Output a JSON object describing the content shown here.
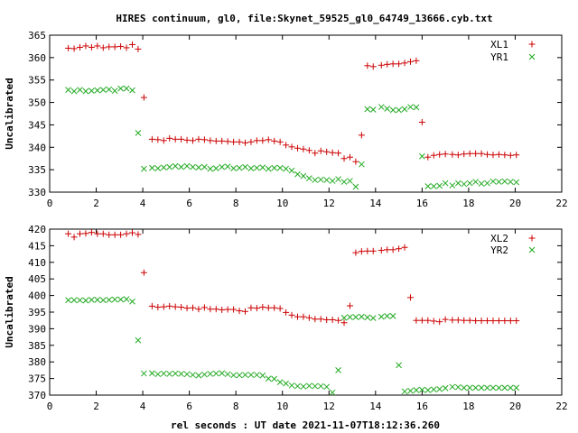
{
  "colors": {
    "red": "#cc0000",
    "green": "#22aa22"
  },
  "chart_data": [
    {
      "type": "scatter",
      "title": "HIRES continuum, gl0, file:Skynet_59525_gl0_64749_13666.cyb.txt",
      "xlabel": "",
      "ylabel": "Uncalibrated",
      "xlim": [
        0,
        22
      ],
      "ylim": [
        330,
        365
      ],
      "xticks": [
        0,
        2,
        4,
        6,
        8,
        10,
        12,
        14,
        16,
        18,
        20,
        22
      ],
      "yticks": [
        330,
        335,
        340,
        345,
        350,
        355,
        360,
        365
      ],
      "legend_position": "top-right",
      "series": [
        {
          "name": "XL1",
          "marker": "plus",
          "color": "#cc0000",
          "x": [
            0.8,
            1.05,
            1.3,
            1.55,
            1.8,
            2.05,
            2.3,
            2.55,
            2.8,
            3.05,
            3.3,
            3.55,
            3.8,
            4.05,
            4.4,
            4.65,
            4.9,
            5.15,
            5.4,
            5.65,
            5.9,
            6.15,
            6.4,
            6.65,
            6.9,
            7.15,
            7.4,
            7.65,
            7.9,
            8.15,
            8.4,
            8.65,
            8.9,
            9.15,
            9.4,
            9.65,
            9.9,
            10.15,
            10.4,
            10.65,
            10.9,
            11.15,
            11.4,
            11.65,
            11.9,
            12.15,
            12.4,
            12.65,
            12.9,
            13.15,
            13.4,
            13.65,
            13.9,
            14.25,
            14.5,
            14.75,
            15.0,
            15.25,
            15.5,
            15.75,
            16.0,
            16.25,
            16.5,
            16.75,
            17.0,
            17.3,
            17.55,
            17.8,
            18.05,
            18.3,
            18.55,
            18.8,
            19.05,
            19.3,
            19.55,
            19.8,
            20.05
          ],
          "values": [
            362.1,
            362.0,
            362.3,
            362.6,
            362.3,
            362.6,
            362.2,
            362.4,
            362.4,
            362.5,
            362.2,
            362.9,
            361.9,
            351.1,
            341.8,
            341.7,
            341.5,
            342.0,
            341.8,
            341.8,
            341.6,
            341.5,
            341.8,
            341.7,
            341.5,
            341.4,
            341.4,
            341.3,
            341.2,
            341.2,
            341.0,
            341.2,
            341.5,
            341.5,
            341.7,
            341.4,
            341.2,
            340.5,
            340.1,
            339.8,
            339.6,
            339.3,
            338.7,
            339.2,
            339.0,
            338.8,
            338.7,
            337.5,
            337.8,
            336.8,
            342.7,
            358.2,
            358.0,
            358.3,
            358.5,
            358.6,
            358.6,
            358.8,
            359.1,
            359.3,
            345.6,
            337.8,
            338.2,
            338.4,
            338.5,
            338.4,
            338.3,
            338.5,
            338.6,
            338.6,
            338.6,
            338.4,
            338.3,
            338.4,
            338.3,
            338.2,
            338.3
          ],
          "x_shift": [
            0,
            0,
            0,
            0,
            0,
            0,
            0,
            0,
            0,
            0,
            0,
            0,
            0,
            0,
            0,
            0,
            0,
            0,
            0,
            0,
            0,
            0,
            0,
            0,
            0,
            0,
            0,
            0,
            0,
            0,
            0,
            0,
            0,
            0,
            0,
            0,
            0,
            0,
            0,
            0,
            0,
            0,
            0,
            0,
            0,
            0,
            0,
            0,
            0,
            0,
            0,
            0,
            0,
            0,
            0,
            0,
            0,
            0,
            0,
            0,
            0,
            0,
            0,
            0,
            0,
            0,
            0,
            0,
            0,
            0,
            0,
            0,
            0,
            0,
            0,
            0,
            0
          ]
        },
        {
          "name": "YR1",
          "marker": "cross",
          "color": "#22aa22",
          "x": [
            0.8,
            1.05,
            1.3,
            1.55,
            1.8,
            2.05,
            2.3,
            2.55,
            2.8,
            3.05,
            3.3,
            3.55,
            3.8,
            4.05,
            4.4,
            4.65,
            4.9,
            5.15,
            5.4,
            5.65,
            5.9,
            6.15,
            6.4,
            6.65,
            6.9,
            7.15,
            7.4,
            7.65,
            7.9,
            8.15,
            8.4,
            8.65,
            8.9,
            9.15,
            9.4,
            9.65,
            9.9,
            10.15,
            10.4,
            10.65,
            10.9,
            11.15,
            11.4,
            11.65,
            11.9,
            12.15,
            12.4,
            12.65,
            12.9,
            13.15,
            13.4,
            13.65,
            13.9,
            14.25,
            14.5,
            14.75,
            15.0,
            15.25,
            15.5,
            15.75,
            16.0,
            16.25,
            16.5,
            16.75,
            17.0,
            17.3,
            17.55,
            17.8,
            18.05,
            18.3,
            18.55,
            18.8,
            19.05,
            19.3,
            19.55,
            19.8,
            20.05
          ],
          "values": [
            352.8,
            352.5,
            352.8,
            352.5,
            352.6,
            352.7,
            352.8,
            352.9,
            352.6,
            353.1,
            353.1,
            352.7,
            343.2,
            335.2,
            335.4,
            335.3,
            335.5,
            335.6,
            335.8,
            335.6,
            335.8,
            335.6,
            335.5,
            335.6,
            335.2,
            335.3,
            335.6,
            335.7,
            335.3,
            335.4,
            335.6,
            335.3,
            335.4,
            335.5,
            335.2,
            335.4,
            335.4,
            335.2,
            334.8,
            334.0,
            333.6,
            333.1,
            332.7,
            332.8,
            332.7,
            332.5,
            332.9,
            332.3,
            332.5,
            331.2,
            336.2,
            348.5,
            348.4,
            349.0,
            348.6,
            348.3,
            348.3,
            348.5,
            349.0,
            348.9,
            338.0,
            331.3,
            331.3,
            331.4,
            332.0,
            331.5,
            332.0,
            331.8,
            332.0,
            332.3,
            331.9,
            332.0,
            332.4,
            332.3,
            332.4,
            332.3,
            332.2
          ],
          "x_shift": [
            0,
            0,
            0,
            0,
            0,
            0,
            0,
            0,
            0,
            0,
            0,
            0,
            0,
            0,
            0,
            0,
            0,
            0,
            0,
            0,
            0,
            0,
            0,
            0,
            0,
            0,
            0,
            0,
            0,
            0,
            0,
            0,
            0,
            0,
            0,
            0,
            0,
            0,
            0,
            0,
            0,
            0,
            0,
            0,
            0,
            0,
            0,
            0,
            0,
            0,
            0,
            0,
            0,
            0,
            0,
            0,
            0,
            0,
            0,
            0,
            0,
            0,
            0,
            0,
            0,
            0,
            0,
            0,
            0,
            0,
            0,
            0,
            0,
            0,
            0,
            0,
            0
          ]
        }
      ]
    },
    {
      "type": "scatter",
      "title": "",
      "xlabel": "rel seconds : UT date 2021-11-07T18:12:36.260",
      "ylabel": "Uncalibrated",
      "xlim": [
        0,
        22
      ],
      "ylim": [
        370,
        420
      ],
      "xticks": [
        0,
        2,
        4,
        6,
        8,
        10,
        12,
        14,
        16,
        18,
        20,
        22
      ],
      "yticks": [
        370,
        375,
        380,
        385,
        390,
        395,
        400,
        405,
        410,
        415,
        420
      ],
      "legend_position": "top-right",
      "series": [
        {
          "name": "XL2",
          "marker": "plus",
          "color": "#cc0000",
          "x": [
            0.8,
            1.05,
            1.3,
            1.55,
            1.8,
            2.05,
            2.3,
            2.55,
            2.8,
            3.05,
            3.3,
            3.55,
            3.8,
            4.05,
            4.4,
            4.65,
            4.9,
            5.15,
            5.4,
            5.65,
            5.9,
            6.15,
            6.4,
            6.65,
            6.9,
            7.15,
            7.4,
            7.65,
            7.9,
            8.15,
            8.4,
            8.65,
            8.9,
            9.15,
            9.4,
            9.65,
            9.9,
            10.15,
            10.4,
            10.65,
            10.9,
            11.15,
            11.4,
            11.65,
            11.9,
            12.15,
            12.4,
            12.65,
            12.9,
            13.15,
            13.4,
            13.65,
            13.9,
            14.25,
            14.5,
            14.75,
            15.0,
            15.25,
            15.5,
            15.75,
            16.0,
            16.25,
            16.5,
            16.75,
            17.0,
            17.3,
            17.55,
            17.8,
            18.05,
            18.3,
            18.55,
            18.8,
            19.05,
            19.3,
            19.55,
            19.8,
            20.05
          ],
          "values": [
            418.6,
            417.6,
            418.6,
            418.7,
            419.0,
            418.6,
            418.6,
            418.3,
            418.3,
            418.3,
            418.6,
            418.9,
            418.4,
            406.9,
            396.8,
            396.5,
            396.6,
            396.8,
            396.6,
            396.5,
            396.2,
            396.3,
            395.9,
            396.4,
            395.9,
            395.9,
            395.7,
            395.8,
            395.8,
            395.4,
            395.2,
            396.3,
            396.2,
            396.5,
            396.3,
            396.3,
            396.1,
            394.9,
            394.1,
            393.6,
            393.6,
            393.3,
            392.9,
            392.9,
            392.7,
            392.7,
            392.5,
            391.8,
            396.9,
            412.9,
            413.3,
            413.4,
            413.4,
            413.6,
            413.8,
            413.8,
            414.1,
            414.5,
            399.4,
            392.5,
            392.5,
            392.5,
            392.3,
            392.1,
            392.8,
            392.6,
            392.6,
            392.5,
            392.5,
            392.4,
            392.4,
            392.4,
            392.4,
            392.4,
            392.4,
            392.4,
            392.4
          ],
          "x_shift": [
            0,
            0,
            0,
            0,
            0,
            0,
            0,
            0,
            0,
            0,
            0,
            0,
            0,
            0,
            0,
            0,
            0,
            0,
            0,
            0,
            0,
            0,
            0,
            0,
            0,
            0,
            0,
            0,
            0,
            0,
            0,
            0,
            0,
            0,
            0,
            0,
            0,
            0,
            0,
            0,
            0,
            0,
            0,
            0,
            0,
            0,
            0,
            0,
            0,
            0,
            0,
            0,
            0,
            0,
            0,
            0,
            0,
            0,
            0,
            0,
            0,
            0,
            0,
            0,
            0,
            0,
            0,
            0,
            0,
            0,
            0,
            0,
            0,
            0,
            0,
            0,
            0
          ]
        },
        {
          "name": "YR2",
          "marker": "cross",
          "color": "#22aa22",
          "x": [
            0.8,
            1.05,
            1.3,
            1.55,
            1.8,
            2.05,
            2.3,
            2.55,
            2.8,
            3.05,
            3.3,
            3.55,
            3.8,
            4.05,
            4.4,
            4.65,
            4.9,
            5.15,
            5.4,
            5.65,
            5.9,
            6.15,
            6.4,
            6.65,
            6.9,
            7.15,
            7.4,
            7.65,
            7.9,
            8.15,
            8.4,
            8.65,
            8.9,
            9.15,
            9.4,
            9.65,
            9.9,
            10.15,
            10.4,
            10.65,
            10.9,
            11.15,
            11.4,
            11.65,
            11.9,
            12.15,
            12.4,
            12.65,
            12.9,
            13.15,
            13.4,
            13.65,
            13.9,
            14.25,
            14.5,
            14.75,
            15.0,
            15.25,
            15.5,
            15.75,
            16.0,
            16.25,
            16.5,
            16.75,
            17.0,
            17.3,
            17.55,
            17.8,
            18.05,
            18.3,
            18.55,
            18.8,
            19.05,
            19.3,
            19.55,
            19.8,
            20.05
          ],
          "values": [
            398.6,
            398.6,
            398.6,
            398.5,
            398.7,
            398.7,
            398.6,
            398.7,
            398.8,
            398.8,
            398.9,
            398.2,
            386.5,
            376.5,
            376.6,
            376.3,
            376.5,
            376.4,
            376.5,
            376.4,
            376.3,
            376.1,
            375.9,
            376.2,
            376.4,
            376.5,
            376.6,
            376.3,
            376.0,
            376.0,
            376.1,
            376.1,
            376.1,
            375.9,
            375.0,
            374.9,
            373.9,
            373.5,
            372.9,
            372.7,
            372.6,
            372.8,
            372.7,
            372.7,
            372.5,
            370.8,
            377.5,
            393.3,
            393.5,
            393.5,
            393.6,
            393.4,
            393.2,
            393.6,
            393.8,
            393.8,
            379.0,
            371.1,
            371.3,
            371.5,
            371.6,
            371.5,
            371.7,
            371.8,
            372.1,
            372.5,
            372.4,
            372.2,
            372.2,
            372.2,
            372.2,
            372.2,
            372.2,
            372.2,
            372.2,
            372.2,
            372.2
          ],
          "x_shift": [
            0,
            0,
            0,
            0,
            0,
            0,
            0,
            0,
            0,
            0,
            0,
            0,
            0,
            0,
            0,
            0,
            0,
            0,
            0,
            0,
            0,
            0,
            0,
            0,
            0,
            0,
            0,
            0,
            0,
            0,
            0,
            0,
            0,
            0,
            0,
            0,
            0,
            0,
            0,
            0,
            0,
            0,
            0,
            0,
            0,
            0,
            0,
            0,
            0,
            0,
            0,
            0,
            0,
            0,
            0,
            0,
            0,
            0,
            0,
            0,
            0,
            0,
            0,
            0,
            0,
            0,
            0,
            0,
            0,
            0,
            0,
            0,
            0,
            0,
            0,
            0,
            0
          ]
        }
      ]
    }
  ]
}
